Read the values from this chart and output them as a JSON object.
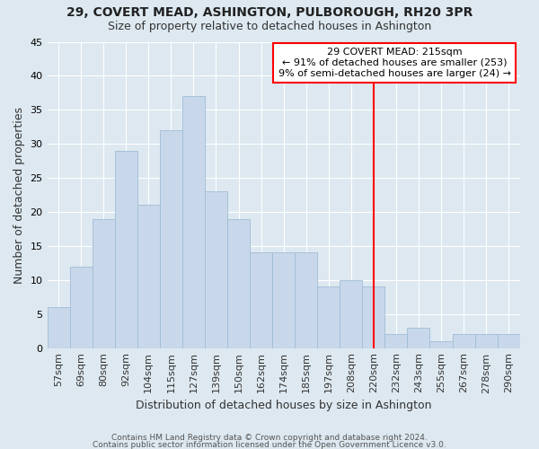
{
  "title": "29, COVERT MEAD, ASHINGTON, PULBOROUGH, RH20 3PR",
  "subtitle": "Size of property relative to detached houses in Ashington",
  "xlabel": "Distribution of detached houses by size in Ashington",
  "ylabel": "Number of detached properties",
  "bar_color": "#c8d8ea",
  "bar_edge_color": "#a0bcd8",
  "background_color": "#dde8f0",
  "grid_color": "#ffffff",
  "categories": [
    "57sqm",
    "69sqm",
    "80sqm",
    "92sqm",
    "104sqm",
    "115sqm",
    "127sqm",
    "139sqm",
    "150sqm",
    "162sqm",
    "174sqm",
    "185sqm",
    "197sqm",
    "208sqm",
    "220sqm",
    "232sqm",
    "243sqm",
    "255sqm",
    "267sqm",
    "278sqm",
    "290sqm"
  ],
  "values": [
    6,
    12,
    19,
    29,
    21,
    32,
    37,
    23,
    19,
    14,
    14,
    14,
    9,
    10,
    9,
    2,
    3,
    1,
    2,
    2,
    2
  ],
  "ylim": [
    0,
    45
  ],
  "yticks": [
    0,
    5,
    10,
    15,
    20,
    25,
    30,
    35,
    40,
    45
  ],
  "vline_index": 14.0,
  "annotation_text": "29 COVERT MEAD: 215sqm\n← 91% of detached houses are smaller (253)\n9% of semi-detached houses are larger (24) →",
  "footer_line1": "Contains HM Land Registry data © Crown copyright and database right 2024.",
  "footer_line2": "Contains public sector information licensed under the Open Government Licence v3.0."
}
